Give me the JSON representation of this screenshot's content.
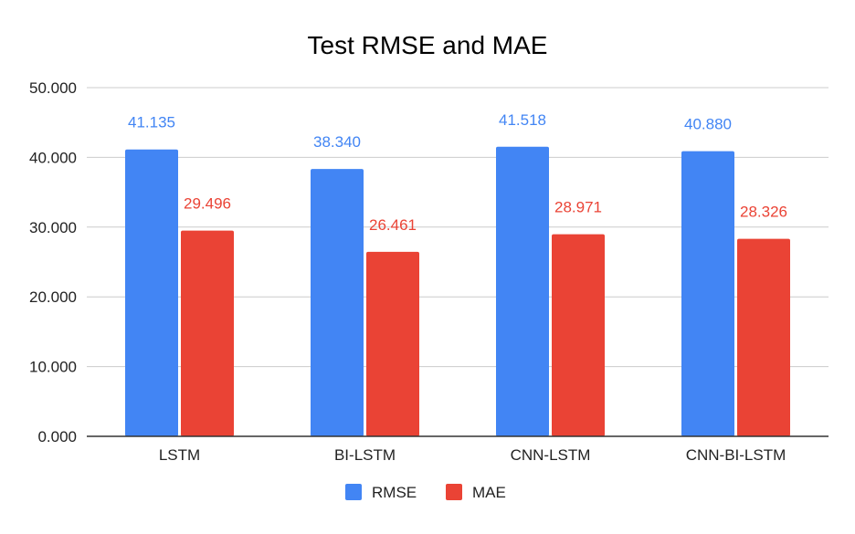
{
  "chart_data": {
    "type": "bar",
    "title": "Test RMSE and MAE",
    "xlabel": "",
    "ylabel": "",
    "categories": [
      "LSTM",
      "BI-LSTM",
      "CNN-LSTM",
      "CNN-BI-LSTM"
    ],
    "series": [
      {
        "name": "RMSE",
        "color": "#4285f4",
        "values": [
          41.135,
          38.34,
          41.518,
          40.88
        ],
        "labels": [
          "41.135",
          "38.340",
          "41.518",
          "40.880"
        ]
      },
      {
        "name": "MAE",
        "color": "#ea4335",
        "values": [
          29.496,
          26.461,
          28.971,
          28.326
        ],
        "labels": [
          "29.496",
          "26.461",
          "28.971",
          "28.326"
        ]
      }
    ],
    "ylim": [
      0,
      50
    ],
    "yticks": [
      0,
      10,
      20,
      30,
      40,
      50
    ],
    "ytick_labels": [
      "0.000",
      "10.000",
      "20.000",
      "30.000",
      "40.000",
      "50.000"
    ],
    "grid": true,
    "legend_position": "bottom"
  }
}
